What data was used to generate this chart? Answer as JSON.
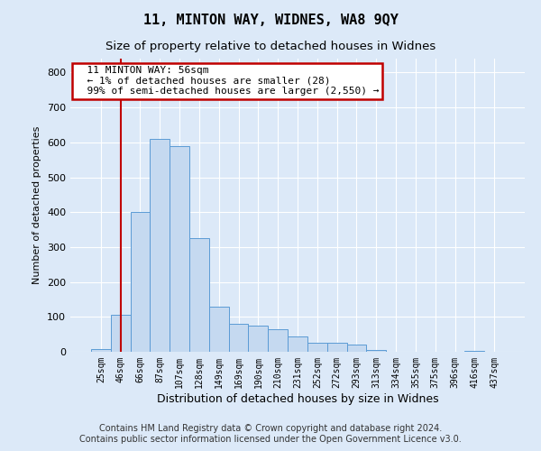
{
  "title1": "11, MINTON WAY, WIDNES, WA8 9QY",
  "title2": "Size of property relative to detached houses in Widnes",
  "xlabel": "Distribution of detached houses by size in Widnes",
  "ylabel": "Number of detached properties",
  "footer": "Contains HM Land Registry data © Crown copyright and database right 2024.\nContains public sector information licensed under the Open Government Licence v3.0.",
  "bar_labels": [
    "25sqm",
    "46sqm",
    "66sqm",
    "87sqm",
    "107sqm",
    "128sqm",
    "149sqm",
    "169sqm",
    "190sqm",
    "210sqm",
    "231sqm",
    "252sqm",
    "272sqm",
    "293sqm",
    "313sqm",
    "334sqm",
    "355sqm",
    "375sqm",
    "396sqm",
    "416sqm",
    "437sqm"
  ],
  "bar_values": [
    8,
    105,
    400,
    610,
    590,
    325,
    130,
    80,
    75,
    65,
    45,
    25,
    25,
    20,
    4,
    0,
    0,
    0,
    0,
    3,
    0
  ],
  "bar_color": "#c5d9f0",
  "bar_edge_color": "#5b9bd5",
  "annotation_text": "  11 MINTON WAY: 56sqm\n  ← 1% of detached houses are smaller (28)\n  99% of semi-detached houses are larger (2,550) →",
  "vline_x": 1.0,
  "vline_color": "#c00000",
  "annotation_box_facecolor": "#ffffff",
  "annotation_box_edgecolor": "#c00000",
  "ylim": [
    0,
    840
  ],
  "yticks": [
    0,
    100,
    200,
    300,
    400,
    500,
    600,
    700,
    800
  ],
  "background_color": "#dce9f8",
  "axes_background": "#dce9f8",
  "grid_color": "#ffffff",
  "title1_fontsize": 11,
  "title2_fontsize": 9.5,
  "ylabel_fontsize": 8,
  "xlabel_fontsize": 9,
  "tick_fontsize": 7,
  "annotation_fontsize": 8,
  "footer_fontsize": 7
}
